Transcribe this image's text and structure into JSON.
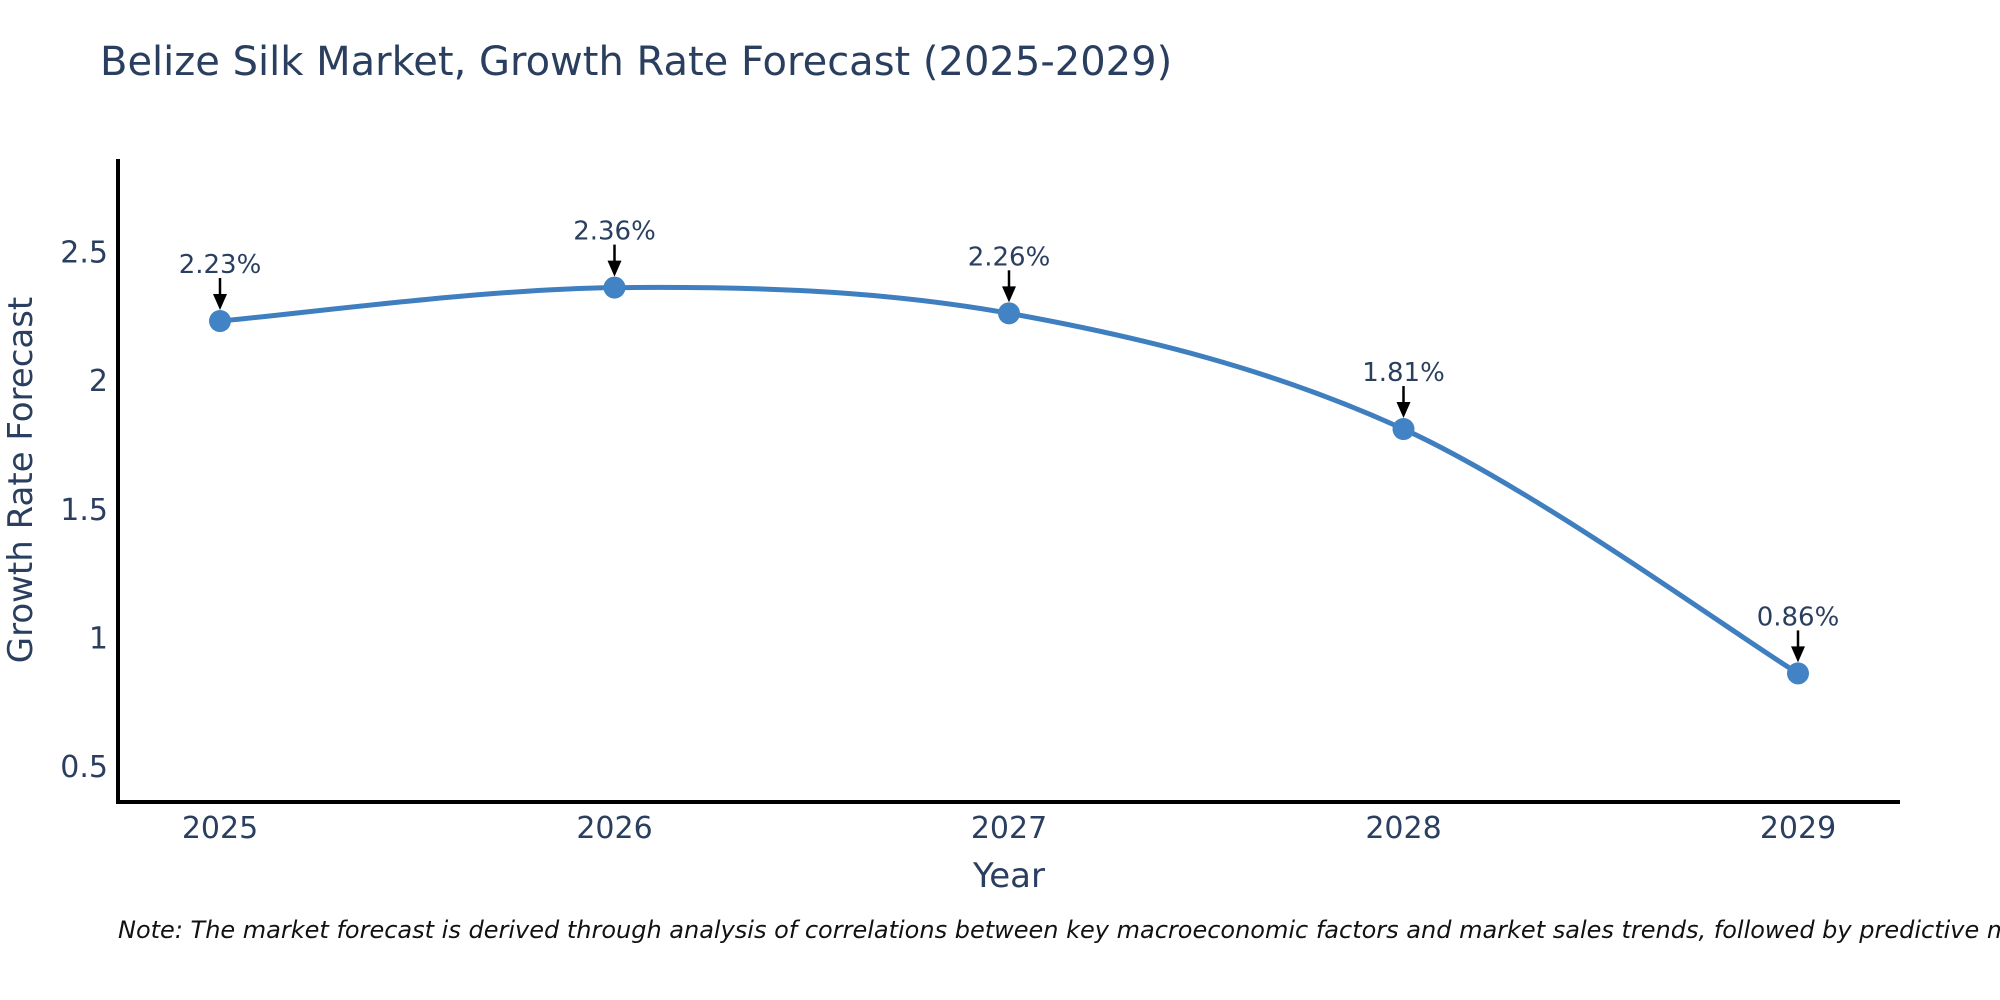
{
  "title": "Belize Silk Market, Growth Rate Forecast (2025-2029)",
  "note": "Note: The market forecast is derived through analysis of correlations between key macroeconomic factors and market sales trends, followed by predictive modeling to project future sales",
  "chart_data": {
    "type": "line",
    "title": "Belize Silk Market, Growth Rate Forecast (2025-2029)",
    "categories": [
      "2025",
      "2026",
      "2027",
      "2028",
      "2029"
    ],
    "values": [
      2.23,
      2.36,
      2.26,
      1.81,
      0.86
    ],
    "point_labels": [
      "2.23%",
      "2.36%",
      "2.26%",
      "1.81%",
      "0.86%"
    ],
    "xlabel": "Year",
    "ylabel": "Growth Rate Forecast",
    "ytick_labels": [
      "0.5",
      "1",
      "1.5",
      "2",
      "2.5"
    ],
    "ytick_values": [
      0.5,
      1,
      1.5,
      2,
      2.5
    ],
    "ylim": [
      0.36,
      2.86
    ],
    "grid": false,
    "legend": "none",
    "line_shape": "spline",
    "colors": {
      "line": "#3f7fbf",
      "marker": "#4183c4",
      "axis": "#000000",
      "text": "#2a3f5f",
      "annotation_arrow": "#000000"
    }
  }
}
